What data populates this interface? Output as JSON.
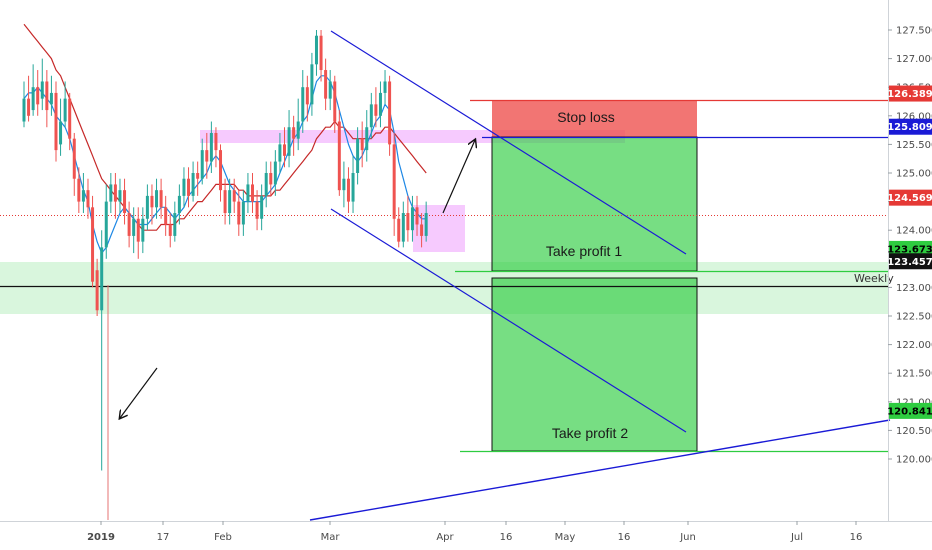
{
  "chart_data": {
    "type": "candlestick",
    "y_axis": {
      "range": [
        119.8,
        127.9
      ],
      "ticks": [
        "127.500",
        "127.000",
        "126.500",
        "126.000",
        "125.500",
        "125.000",
        "124.500",
        "124.000",
        "123.500",
        "123.000",
        "122.500",
        "122.000",
        "121.500",
        "121.000",
        "120.500",
        "120.000"
      ],
      "tick_values": [
        127.5,
        127.0,
        126.5,
        126.0,
        125.5,
        125.0,
        124.5,
        124.0,
        123.5,
        123.0,
        122.5,
        122.0,
        121.5,
        121.0,
        120.5,
        120.0
      ]
    },
    "x_axis": {
      "ticks": [
        {
          "label": "2019",
          "bold": true
        },
        {
          "label": "17",
          "bold": false
        },
        {
          "label": "Feb",
          "bold": false
        },
        {
          "label": "Mar",
          "bold": false
        },
        {
          "label": "Apr",
          "bold": false
        },
        {
          "label": "16",
          "bold": false
        },
        {
          "label": "May",
          "bold": false
        },
        {
          "label": "16",
          "bold": false
        },
        {
          "label": "Jun",
          "bold": false
        },
        {
          "label": "Jul",
          "bold": false
        },
        {
          "label": "16",
          "bold": false
        }
      ]
    },
    "price_levels": [
      {
        "label": "126.389",
        "value": 126.389,
        "color": "#e53935",
        "text_color": "#ffffff"
      },
      {
        "label": "125.809",
        "value": 125.809,
        "color": "#1a1ad6",
        "text_color": "#ffffff"
      },
      {
        "label": "124.569",
        "value": 124.569,
        "color": "#e53935",
        "text_color": "#ffffff"
      },
      {
        "label": "123.673",
        "value": 123.673,
        "color": "#2ecc40",
        "text_color": "#000000"
      },
      {
        "label": "123.457",
        "value": 123.457,
        "color": "#111111",
        "text_color": "#ffffff"
      },
      {
        "label": "120.841",
        "value": 120.841,
        "color": "#2ecc40",
        "text_color": "#000000"
      }
    ],
    "annotations": {
      "stop_loss": "Stop loss",
      "take_profit_1": "Take profit 1",
      "take_profit_2": "Take profit 2",
      "weekly": "Weekly"
    },
    "candles": [
      [
        125.9,
        126.3,
        126.6,
        125.8
      ],
      [
        126.3,
        126.0,
        126.7,
        125.9
      ],
      [
        126.1,
        126.5,
        126.9,
        126.0
      ],
      [
        126.5,
        126.2,
        126.8,
        126.0
      ],
      [
        126.3,
        126.6,
        127.0,
        126.1
      ],
      [
        126.6,
        126.1,
        126.8,
        125.8
      ],
      [
        126.2,
        126.4,
        126.7,
        126.0
      ],
      [
        126.4,
        125.4,
        126.6,
        125.2
      ],
      [
        125.5,
        125.9,
        126.3,
        125.3
      ],
      [
        125.9,
        126.3,
        126.6,
        125.8
      ],
      [
        126.3,
        125.6,
        126.4,
        125.4
      ],
      [
        125.6,
        124.9,
        125.7,
        124.6
      ],
      [
        124.9,
        124.5,
        125.1,
        124.3
      ],
      [
        124.5,
        124.7,
        125.0,
        124.3
      ],
      [
        124.7,
        124.4,
        124.9,
        124.2
      ],
      [
        124.4,
        123.1,
        124.6,
        123.0
      ],
      [
        123.3,
        122.6,
        123.5,
        122.5
      ],
      [
        122.6,
        123.7,
        124.0,
        119.8
      ],
      [
        123.7,
        124.5,
        124.8,
        123.5
      ],
      [
        124.5,
        124.8,
        125.0,
        124.3
      ],
      [
        124.8,
        124.5,
        125.0,
        124.2
      ],
      [
        124.5,
        124.7,
        124.9,
        124.3
      ],
      [
        124.7,
        124.3,
        124.9,
        124.1
      ],
      [
        124.3,
        123.9,
        124.5,
        123.7
      ],
      [
        123.9,
        124.2,
        124.4,
        123.6
      ],
      [
        124.2,
        123.8,
        124.4,
        123.5
      ],
      [
        123.8,
        124.2,
        124.4,
        123.6
      ],
      [
        124.2,
        124.6,
        124.8,
        124.0
      ],
      [
        124.6,
        124.4,
        124.8,
        124.1
      ],
      [
        124.4,
        124.7,
        124.9,
        124.2
      ],
      [
        124.7,
        124.4,
        124.9,
        124.2
      ],
      [
        124.4,
        124.1,
        124.6,
        123.9
      ],
      [
        124.1,
        123.9,
        124.3,
        123.7
      ],
      [
        123.9,
        124.3,
        124.5,
        123.8
      ],
      [
        124.3,
        124.6,
        124.8,
        124.1
      ],
      [
        124.6,
        124.9,
        125.1,
        124.4
      ],
      [
        124.9,
        124.6,
        125.1,
        124.4
      ],
      [
        124.6,
        125.0,
        125.2,
        124.5
      ],
      [
        125.0,
        124.9,
        125.2,
        124.6
      ],
      [
        124.9,
        125.4,
        125.6,
        124.8
      ],
      [
        125.4,
        125.2,
        125.7,
        124.9
      ],
      [
        125.2,
        125.7,
        125.9,
        125.0
      ],
      [
        125.7,
        125.4,
        125.8,
        125.1
      ],
      [
        125.4,
        124.7,
        125.5,
        124.5
      ],
      [
        124.7,
        124.3,
        124.9,
        124.1
      ],
      [
        124.3,
        124.7,
        124.9,
        124.1
      ],
      [
        124.7,
        124.5,
        124.9,
        124.3
      ],
      [
        124.5,
        124.1,
        124.7,
        123.9
      ],
      [
        124.1,
        124.5,
        124.7,
        123.9
      ],
      [
        124.5,
        124.8,
        125.0,
        124.3
      ],
      [
        124.8,
        124.5,
        125.0,
        124.3
      ],
      [
        124.5,
        124.2,
        124.7,
        124.0
      ],
      [
        124.2,
        124.6,
        124.8,
        124.0
      ],
      [
        124.6,
        125.0,
        125.2,
        124.4
      ],
      [
        125.0,
        124.8,
        125.2,
        124.6
      ],
      [
        124.8,
        125.2,
        125.4,
        124.6
      ],
      [
        125.2,
        125.5,
        125.7,
        125.0
      ],
      [
        125.5,
        125.3,
        125.8,
        125.1
      ],
      [
        125.3,
        125.8,
        126.1,
        125.1
      ],
      [
        125.8,
        125.6,
        126.0,
        125.3
      ],
      [
        125.6,
        125.9,
        126.3,
        125.4
      ],
      [
        125.9,
        126.5,
        126.8,
        125.7
      ],
      [
        126.5,
        126.2,
        126.7,
        125.9
      ],
      [
        126.2,
        126.9,
        127.1,
        126.0
      ],
      [
        126.9,
        127.4,
        127.5,
        126.7
      ],
      [
        127.4,
        126.8,
        127.5,
        126.6
      ],
      [
        126.8,
        126.3,
        127.0,
        126.1
      ],
      [
        126.3,
        126.6,
        126.8,
        126.1
      ],
      [
        126.6,
        125.9,
        126.7,
        125.7
      ],
      [
        125.9,
        124.7,
        126.1,
        124.6
      ],
      [
        124.7,
        124.9,
        125.2,
        124.4
      ],
      [
        124.9,
        124.5,
        125.1,
        124.3
      ],
      [
        124.5,
        125.0,
        125.3,
        124.3
      ],
      [
        125.0,
        125.6,
        125.8,
        124.8
      ],
      [
        125.6,
        125.4,
        125.9,
        125.1
      ],
      [
        125.4,
        125.8,
        126.1,
        125.2
      ],
      [
        125.8,
        126.2,
        126.4,
        125.6
      ],
      [
        126.2,
        126.0,
        126.5,
        125.8
      ],
      [
        126.0,
        126.4,
        126.6,
        125.8
      ],
      [
        126.4,
        126.6,
        126.8,
        126.2
      ],
      [
        126.6,
        125.5,
        126.7,
        125.3
      ],
      [
        125.5,
        124.2,
        125.7,
        123.9
      ],
      [
        124.2,
        123.8,
        124.4,
        123.7
      ],
      [
        123.8,
        124.3,
        124.5,
        123.7
      ],
      [
        124.3,
        124.0,
        124.6,
        123.8
      ],
      [
        124.0,
        124.4,
        124.6,
        123.8
      ],
      [
        124.4,
        124.1,
        124.6,
        123.9
      ],
      [
        124.1,
        123.9,
        124.3,
        123.7
      ],
      [
        123.9,
        124.3,
        124.5,
        123.8
      ]
    ],
    "ma_fast": [
      [
        126.3,
        126.4,
        126.4,
        126.5,
        126.4,
        126.3,
        126.2,
        126.0,
        125.9,
        125.8,
        125.6,
        125.3,
        125.0,
        124.7,
        124.5,
        124.1,
        123.8,
        123.6,
        123.7,
        123.9,
        124.1,
        124.3,
        124.4,
        124.3,
        124.2,
        124.1,
        124.1,
        124.1,
        124.2,
        124.3,
        124.4,
        124.4,
        124.3,
        124.2,
        124.3,
        124.4,
        124.6,
        124.7,
        124.8,
        124.9,
        125.0,
        125.2,
        125.3,
        125.2,
        125.0,
        124.8,
        124.7,
        124.6,
        124.5,
        124.5,
        124.5,
        124.5,
        124.5,
        124.6,
        124.7,
        124.8,
        125.0,
        125.2,
        125.4,
        125.6,
        125.7,
        125.9,
        126.0,
        126.3,
        126.6,
        126.7,
        126.7,
        126.6,
        126.4,
        126.1,
        125.8,
        125.5,
        125.3,
        125.2,
        125.3,
        125.5,
        125.7,
        125.9,
        126.0,
        126.2,
        126.1,
        125.7,
        125.2,
        124.9,
        124.6,
        124.4,
        124.3,
        124.2,
        124.2
      ]
    ],
    "ma_slow": [
      [
        127.6,
        127.5,
        127.4,
        127.3,
        127.2,
        127.1,
        127.0,
        126.8,
        126.7,
        126.5,
        126.3,
        126.1,
        125.9,
        125.7,
        125.5,
        125.3,
        125.1,
        124.9,
        124.8,
        124.7,
        124.6,
        124.5,
        124.4,
        124.3,
        124.2,
        124.1,
        124.0,
        124.0,
        124.0,
        124.0,
        124.1,
        124.1,
        124.1,
        124.1,
        124.2,
        124.2,
        124.3,
        124.4,
        124.5,
        124.5,
        124.6,
        124.7,
        124.8,
        124.8,
        124.8,
        124.8,
        124.8,
        124.7,
        124.7,
        124.6,
        124.6,
        124.6,
        124.6,
        124.6,
        124.6,
        124.7,
        124.7,
        124.8,
        124.9,
        125.0,
        125.1,
        125.2,
        125.3,
        125.4,
        125.6,
        125.7,
        125.8,
        125.8,
        125.9,
        125.8,
        125.8,
        125.7,
        125.6,
        125.6,
        125.6,
        125.6,
        125.6,
        125.7,
        125.7,
        125.8,
        125.8,
        125.7,
        125.6,
        125.5,
        125.4,
        125.3,
        125.2,
        125.1,
        125.0
      ]
    ]
  }
}
